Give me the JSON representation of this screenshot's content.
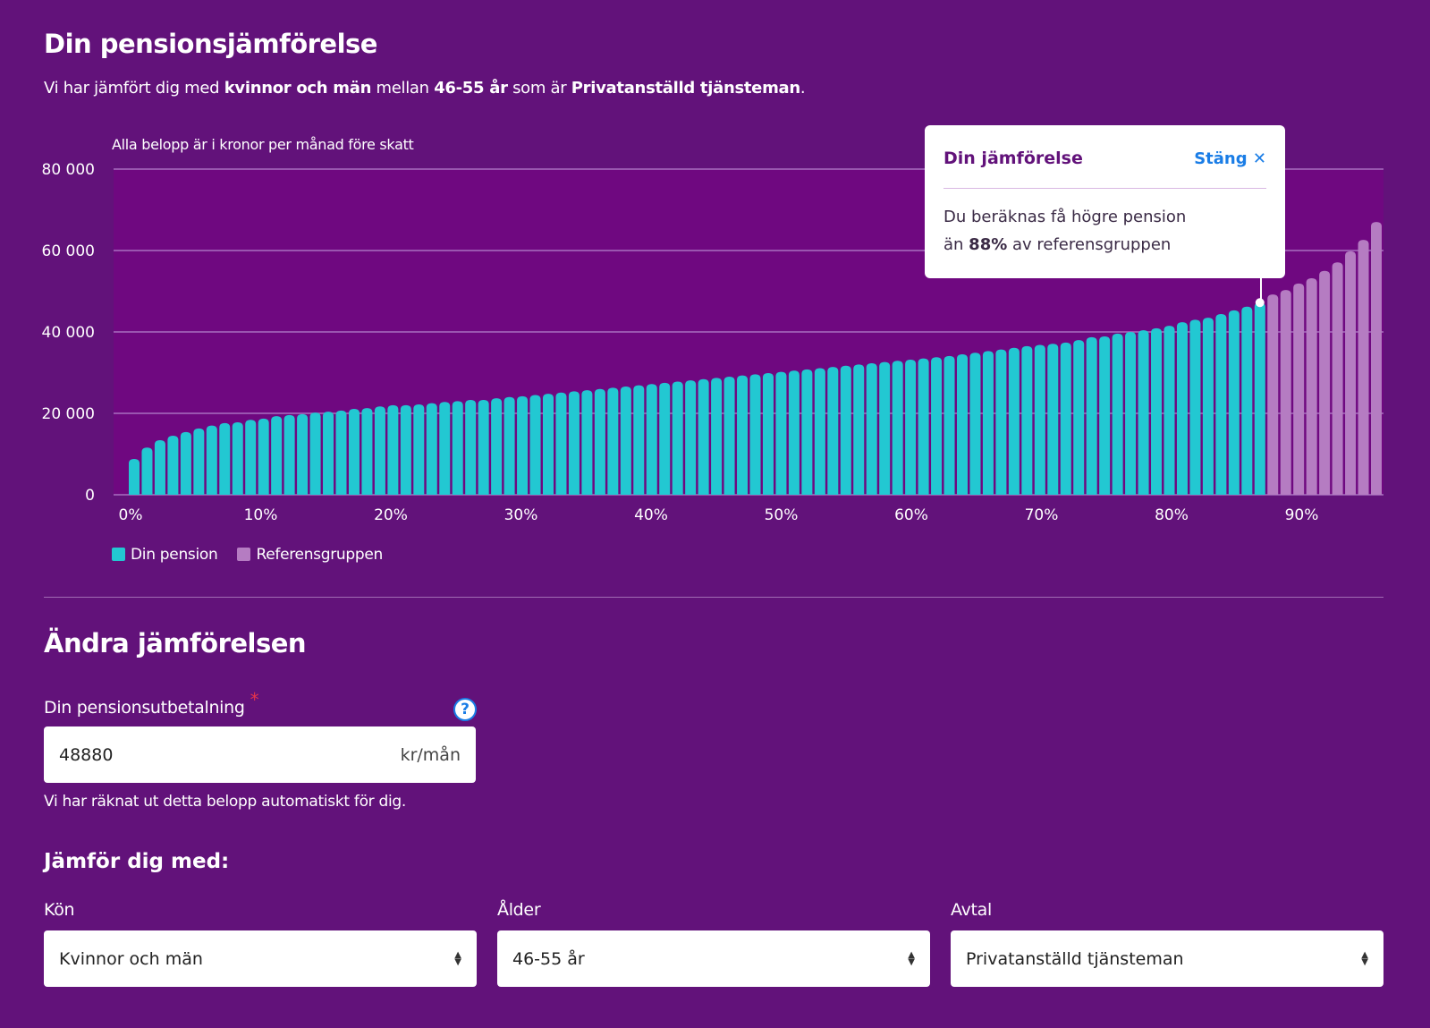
{
  "header": {
    "title": "Din pensionsjämförelse",
    "subtitle_parts": [
      "Vi har jämfört dig med ",
      "kvinnor och män",
      " mellan ",
      "46-55 år",
      " som är ",
      "Privatanställd tjänsteman",
      "."
    ]
  },
  "chart_data": {
    "type": "bar",
    "note": "Alla belopp är i kronor per månad före skatt",
    "ylim": [
      0,
      80000
    ],
    "y_ticks": [
      0,
      20000,
      40000,
      60000,
      80000
    ],
    "y_tick_labels": [
      "0",
      "20 000",
      "40 000",
      "60 000",
      "80 000"
    ],
    "x_tick_labels": [
      "0%",
      "10%",
      "20%",
      "30%",
      "40%",
      "50%",
      "60%",
      "70%",
      "80%",
      "90%"
    ],
    "grid": true,
    "highlight_count": 88,
    "colors": {
      "din_pension": "#22c8d2",
      "referensgruppen": "#b57cc2",
      "plot_bg": "#6f0880",
      "grid": "#a86fbf"
    },
    "series": [
      {
        "name": "Din pension",
        "values": [
          8800,
          11600,
          13400,
          14500,
          15400,
          16300,
          17000,
          17600,
          17800,
          18400,
          18700,
          19300,
          19600,
          19800,
          20200,
          20400,
          20700,
          21100,
          21300,
          21700,
          22000,
          22000,
          22200,
          22500,
          22800,
          23000,
          23300,
          23300,
          23700,
          24000,
          24200,
          24500,
          24800,
          25100,
          25400,
          25700,
          26000,
          26300,
          26600,
          26900,
          27200,
          27500,
          27800,
          28100,
          28400,
          28700,
          29000,
          29300,
          29600,
          29900,
          30200,
          30500,
          30800,
          31100,
          31400,
          31700,
          32000,
          32300,
          32600,
          32900,
          33200,
          33500,
          33800,
          34100,
          34500,
          34900,
          35300,
          35700,
          36100,
          36500,
          36800,
          37100,
          37400,
          38000,
          38700,
          38900,
          39600,
          40000,
          40400,
          40900,
          41500,
          42400,
          43000,
          43500,
          44400,
          45300,
          46200,
          47200
        ]
      },
      {
        "name": "Referensgruppen",
        "values": [
          49200,
          50300,
          51900,
          53200,
          55000,
          57100,
          59800,
          62600,
          67000
        ]
      }
    ]
  },
  "tooltip": {
    "title": "Din jämförelse",
    "close_label": "Stäng",
    "close_icon": "close-icon",
    "body_line1": "Du beräknas få högre pension",
    "body_pre": "än ",
    "body_bold": "88%",
    "body_post": " av referensgruppen"
  },
  "form": {
    "title": "Ändra jämförelsen",
    "pension_label": "Din pensionsutbetalning",
    "required_mark": "*",
    "help_icon": "?",
    "pension_value": "48880",
    "pension_unit": "kr/mån",
    "helper_text": "Vi har räknat ut detta belopp automatiskt för dig.",
    "compare_title": "Jämför dig med:",
    "selects": [
      {
        "label": "Kön",
        "value": "Kvinnor och män"
      },
      {
        "label": "Ålder",
        "value": "46-55 år"
      },
      {
        "label": "Avtal",
        "value": "Privatanställd tjänsteman"
      }
    ]
  }
}
